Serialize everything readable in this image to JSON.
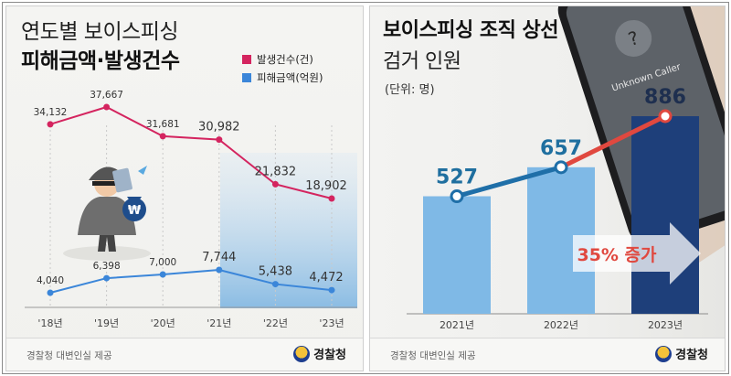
{
  "left": {
    "title_line1": "연도별 보이스피싱",
    "title_line2": "피해금액·발생건수",
    "legend": [
      {
        "label": "발생건수(건)",
        "color": "#d4245f"
      },
      {
        "label": "피해금액(억원)",
        "color": "#3b86d9"
      }
    ],
    "source": "경찰청 대변인실 제공",
    "logo": "경찰청"
  },
  "right": {
    "title_line1": "보이스피싱 조직 상선",
    "title_line2": "검거 인원",
    "unit": "(단위: 명)",
    "arrow_label": "35% 증가",
    "source": "경찰청 대변인실 제공",
    "logo": "경찰청"
  },
  "chart_data": [
    {
      "type": "line",
      "categories": [
        "'18년",
        "'19년",
        "'20년",
        "'21년",
        "'22년",
        "'23년"
      ],
      "series": [
        {
          "name": "발생건수(건)",
          "values": [
            34132,
            37667,
            31681,
            30982,
            21832,
            18902
          ],
          "labels": [
            "34,132",
            "37,667",
            "31,681",
            "30,982",
            "21,832",
            "18,902"
          ],
          "color": "#d4245f"
        },
        {
          "name": "피해금액(억원)",
          "values": [
            4040,
            6398,
            7000,
            7744,
            5438,
            4472
          ],
          "labels": [
            "4,040",
            "6,398",
            "7,000",
            "7,744",
            "5,438",
            "4,472"
          ],
          "color": "#3b86d9"
        }
      ],
      "title": "연도별 보이스피싱 피해금액·발생건수",
      "highlight_range": [
        "'21년",
        "'23년"
      ]
    },
    {
      "type": "bar",
      "categories": [
        "2021년",
        "2022년",
        "2023년"
      ],
      "values": [
        527,
        657,
        886
      ],
      "labels": [
        "527",
        "657",
        "886"
      ],
      "title": "보이스피싱 조직 상선 검거 인원",
      "unit": "(단위: 명)",
      "bar_colors": [
        "#7fb9e6",
        "#7fb9e6",
        "#1e3f7a"
      ],
      "line_colors": [
        "#1f6fa8",
        "#e0483f"
      ],
      "annotation": "35% 증가"
    }
  ]
}
